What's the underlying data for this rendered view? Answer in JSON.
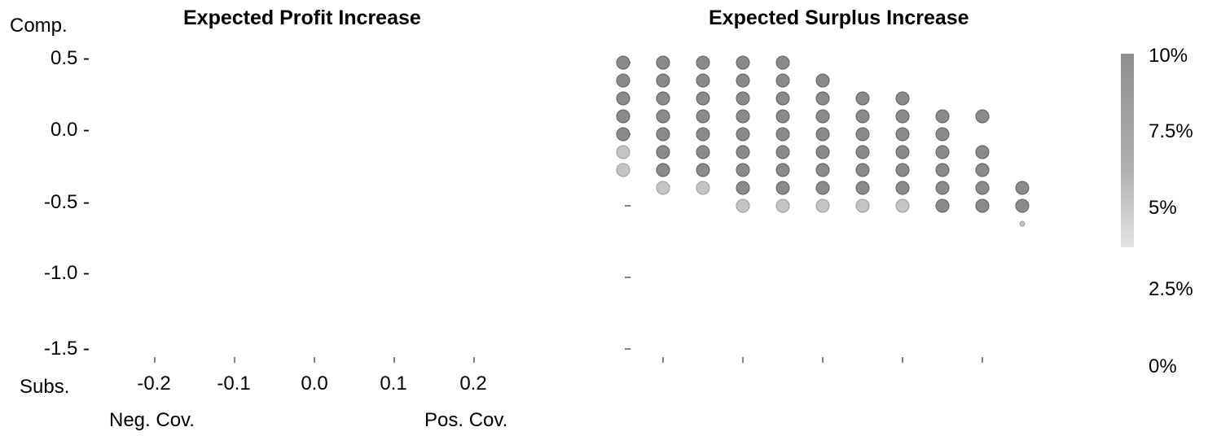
{
  "chart_data": [
    {
      "type": "scatter",
      "title": "Expected Profit Increase",
      "ylabel_top": "Comp.",
      "ylabel_bottom": "Subs.",
      "xlabel_left": "Neg. Cov.",
      "xlabel_right": "Pos. Cov.",
      "x_ticks": [
        "-0.2",
        "-0.1",
        "0.0",
        "0.1",
        "0.2"
      ],
      "y_ticks": [
        "0.5 -",
        "0.0 -",
        "-0.5 -",
        "-1.0 -",
        "-1.5 -"
      ],
      "xlim": [
        -0.25,
        0.25
      ],
      "ylim": [
        -1.5,
        0.5
      ],
      "points": []
    },
    {
      "type": "scatter",
      "title": "Expected Surplus Increase",
      "x_tick_values": [
        -0.2,
        -0.1,
        0.0,
        0.1,
        0.2
      ],
      "y_tick_values": [
        0.5,
        0.0,
        -0.5,
        -1.0,
        -1.5
      ],
      "xlim": [
        -0.25,
        0.25
      ],
      "ylim": [
        -1.5,
        0.5
      ],
      "colorbar": {
        "labels": [
          "10%",
          "7.5%",
          "5%",
          "2.5%",
          "0%"
        ],
        "range": [
          0,
          10
        ]
      },
      "series": [
        {
          "y": 0.5,
          "x": [
            -0.25,
            -0.2,
            -0.15,
            -0.1,
            -0.05
          ]
        },
        {
          "y": 0.375,
          "x": [
            -0.25,
            -0.2,
            -0.15,
            -0.1,
            -0.05,
            0.0
          ]
        },
        {
          "y": 0.25,
          "x": [
            -0.25,
            -0.2,
            -0.15,
            -0.1,
            -0.05,
            0.0,
            0.05,
            0.1
          ]
        },
        {
          "y": 0.125,
          "x": [
            -0.25,
            -0.2,
            -0.15,
            -0.1,
            -0.05,
            0.0,
            0.05,
            0.1,
            0.15,
            0.2
          ]
        },
        {
          "y": 0.0,
          "x": [
            -0.25,
            -0.2,
            -0.15,
            -0.1,
            -0.05,
            0.0,
            0.05,
            0.1,
            0.15
          ]
        },
        {
          "y": -0.125,
          "x": [
            -0.25,
            -0.2,
            -0.15,
            -0.1,
            -0.05,
            0.0,
            0.05,
            0.1,
            0.15,
            0.2
          ]
        },
        {
          "y": -0.25,
          "x": [
            -0.25,
            -0.2,
            -0.15,
            -0.1,
            -0.05,
            0.0,
            0.05,
            0.1,
            0.15,
            0.2
          ]
        },
        {
          "y": -0.375,
          "x": [
            -0.2,
            -0.15,
            -0.1,
            -0.05,
            0.0,
            0.05,
            0.1,
            0.15,
            0.2,
            0.25
          ]
        },
        {
          "y": -0.5,
          "x": [
            -0.1,
            -0.05,
            0.0,
            0.05,
            0.1,
            0.15,
            0.2,
            0.25
          ]
        },
        {
          "y": -0.625,
          "x": [
            0.25
          ]
        }
      ]
    }
  ],
  "colors": {
    "marker": "#8a8a8a",
    "marker_faint": "#c4c4c4"
  }
}
